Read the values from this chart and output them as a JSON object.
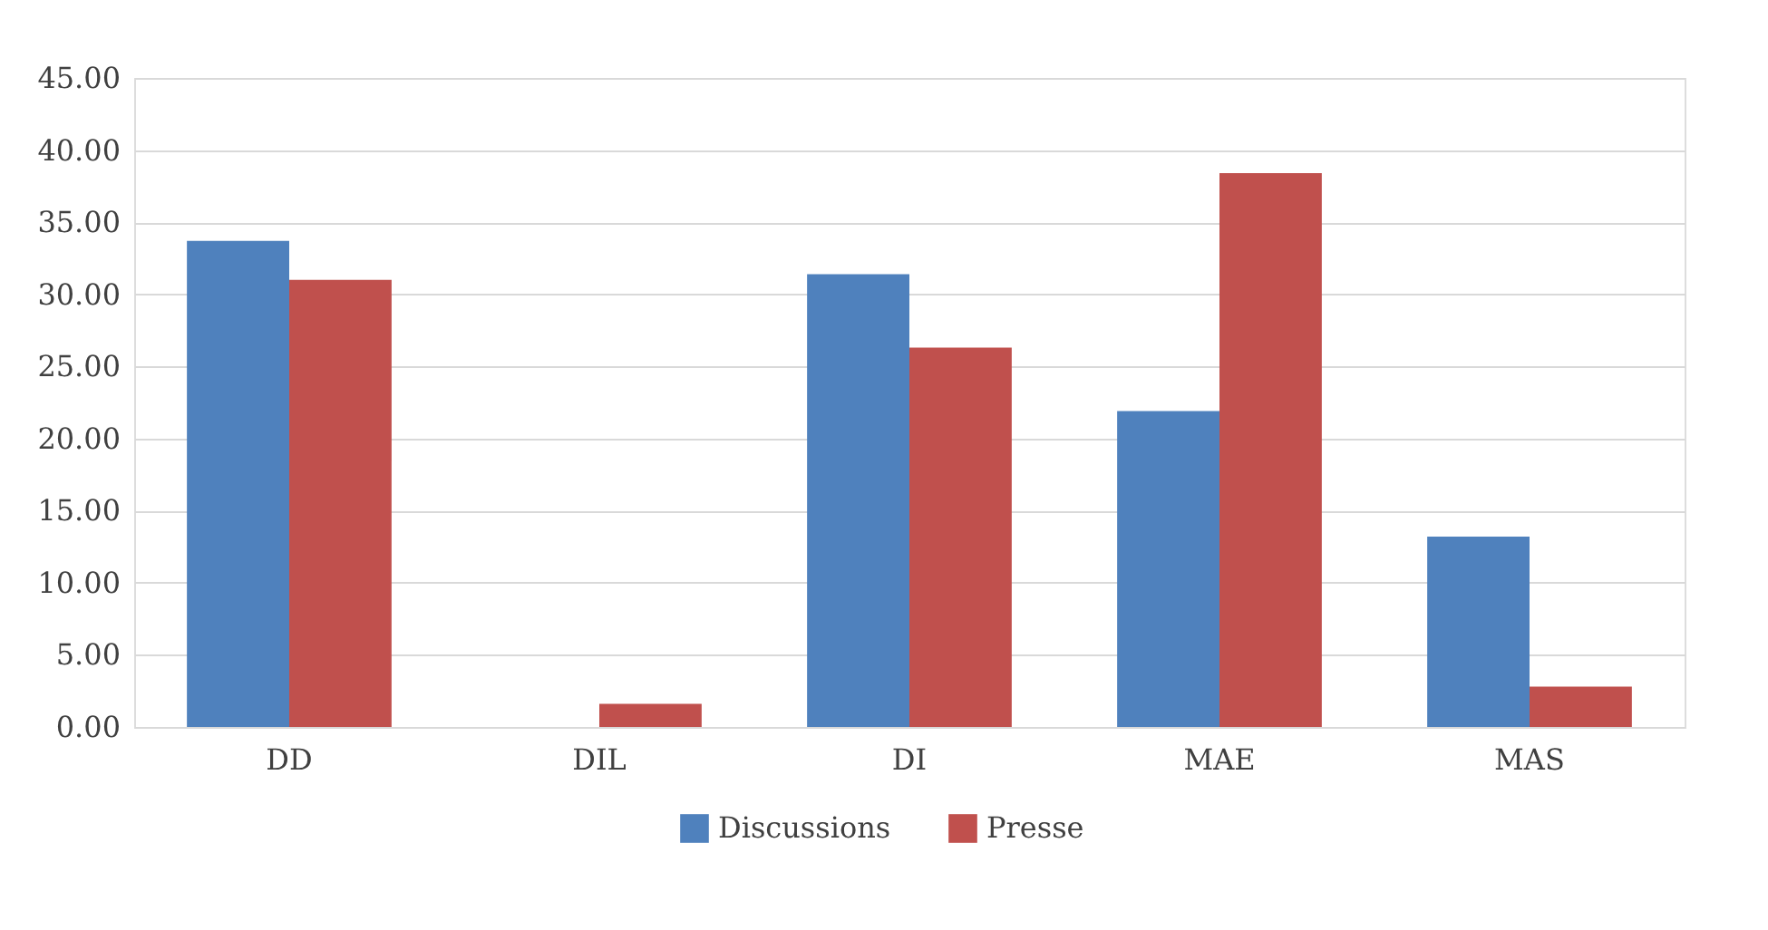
{
  "chart_data": {
    "type": "bar",
    "categories": [
      "DD",
      "DIL",
      "DI",
      "MAE",
      "MAS"
    ],
    "series": [
      {
        "name": "Discussions",
        "color": "#4f81bd",
        "values": [
          33.7,
          0,
          31.4,
          21.9,
          13.2
        ]
      },
      {
        "name": "Presse",
        "color": "#c0504d",
        "values": [
          31.0,
          1.6,
          26.3,
          38.4,
          2.8
        ]
      }
    ],
    "ylim": [
      0,
      45
    ],
    "yticks": [
      {
        "value": 0,
        "label": "0.00"
      },
      {
        "value": 5,
        "label": "5.00"
      },
      {
        "value": 10,
        "label": "10.00"
      },
      {
        "value": 15,
        "label": "15.00"
      },
      {
        "value": 20,
        "label": "20.00"
      },
      {
        "value": 25,
        "label": "25.00"
      },
      {
        "value": 30,
        "label": "30.00"
      },
      {
        "value": 35,
        "label": "35.00"
      },
      {
        "value": 40,
        "label": "40.00"
      },
      {
        "value": 45,
        "label": "45.00"
      }
    ],
    "grid": "y",
    "legend": "bottom"
  }
}
